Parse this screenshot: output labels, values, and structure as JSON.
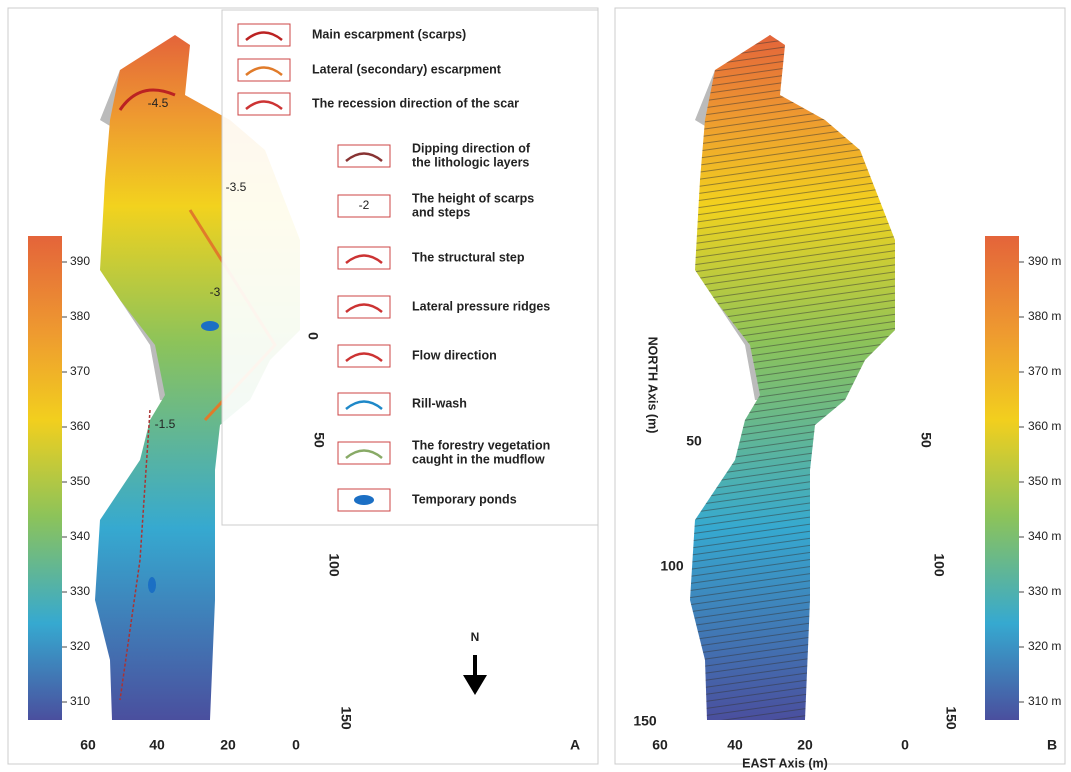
{
  "panel_a": {
    "label": "A",
    "colorbar_ticks": [
      390,
      380,
      370,
      360,
      350,
      340,
      330,
      320,
      310
    ],
    "east_ticks": [
      60,
      40,
      20,
      0
    ],
    "north_ticks": [
      0,
      50,
      100,
      150
    ],
    "map_labels": [
      "-4.5",
      "-3.5",
      "-3",
      "-1.5"
    ],
    "north_symbol": "N",
    "legend": [
      {
        "lines": [
          "Main escarpment (scarps)"
        ]
      },
      {
        "lines": [
          "Lateral (secondary) escarpment"
        ]
      },
      {
        "lines": [
          "The recession direction of the scar"
        ]
      },
      {
        "lines": [
          "Dipping direction of",
          "the lithologic layers"
        ]
      },
      {
        "symbol": "-2",
        "lines": [
          "The height of scarps",
          "and steps"
        ]
      },
      {
        "lines": [
          "The structural step"
        ]
      },
      {
        "lines": [
          "Lateral pressure ridges"
        ]
      },
      {
        "lines": [
          "Flow direction"
        ]
      },
      {
        "lines": [
          "Rill-wash"
        ]
      },
      {
        "lines": [
          "The forestry vegetation",
          "caught in the mudflow"
        ]
      },
      {
        "lines": [
          "Temporary ponds"
        ]
      }
    ]
  },
  "panel_b": {
    "label": "B",
    "colorbar_ticks": [
      "390 m",
      "380 m",
      "370 m",
      "360 m",
      "350 m",
      "340 m",
      "330 m",
      "320 m",
      "310 m"
    ],
    "east_ticks": [
      60,
      40,
      20,
      0
    ],
    "north_ticks_left": [
      150,
      100,
      50
    ],
    "north_ticks_right": [
      50,
      100,
      150
    ],
    "x_axis_title": "EAST Axis (m)",
    "y_axis_title": "NORTH Axis (m)"
  }
}
